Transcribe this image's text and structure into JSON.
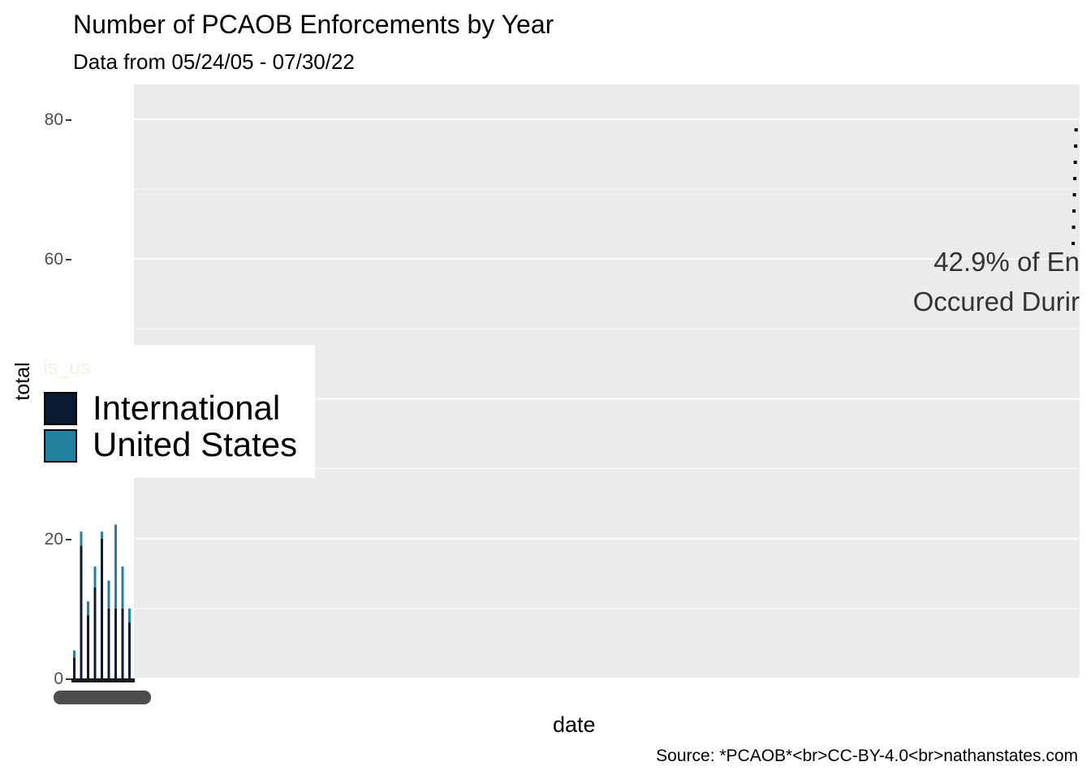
{
  "chart_data": {
    "type": "bar",
    "title": "Number of PCAOB Enforcements by Year",
    "subtitle": "Data from  05/24/05 - 07/30/22",
    "caption": "Source: *PCAOB*<br>CC-BY-4.0<br>nathanstates.com",
    "xlabel": "date",
    "ylabel": "total",
    "ylim": [
      0,
      80
    ],
    "yticks": [
      "0",
      "20",
      "60",
      "80"
    ],
    "grid": true,
    "legend": {
      "title": "is_us",
      "placement": "left",
      "entries": [
        {
          "label": "International",
          "color": "#0b1a33"
        },
        {
          "label": "United States",
          "color": "#22819f"
        }
      ]
    },
    "annotation": {
      "line1": "42.9% of En",
      "line2": "Occured Durir",
      "bracket_from": 62,
      "bracket_to": 80
    },
    "series": [
      {
        "name": "International",
        "color": "#0b1a33",
        "values": [
          3,
          19,
          9,
          13,
          20,
          10,
          10,
          10,
          8
        ]
      },
      {
        "name": "United States",
        "color": "#22819f",
        "values": [
          1,
          2,
          2,
          3,
          1,
          4,
          12,
          6,
          2
        ]
      }
    ]
  }
}
